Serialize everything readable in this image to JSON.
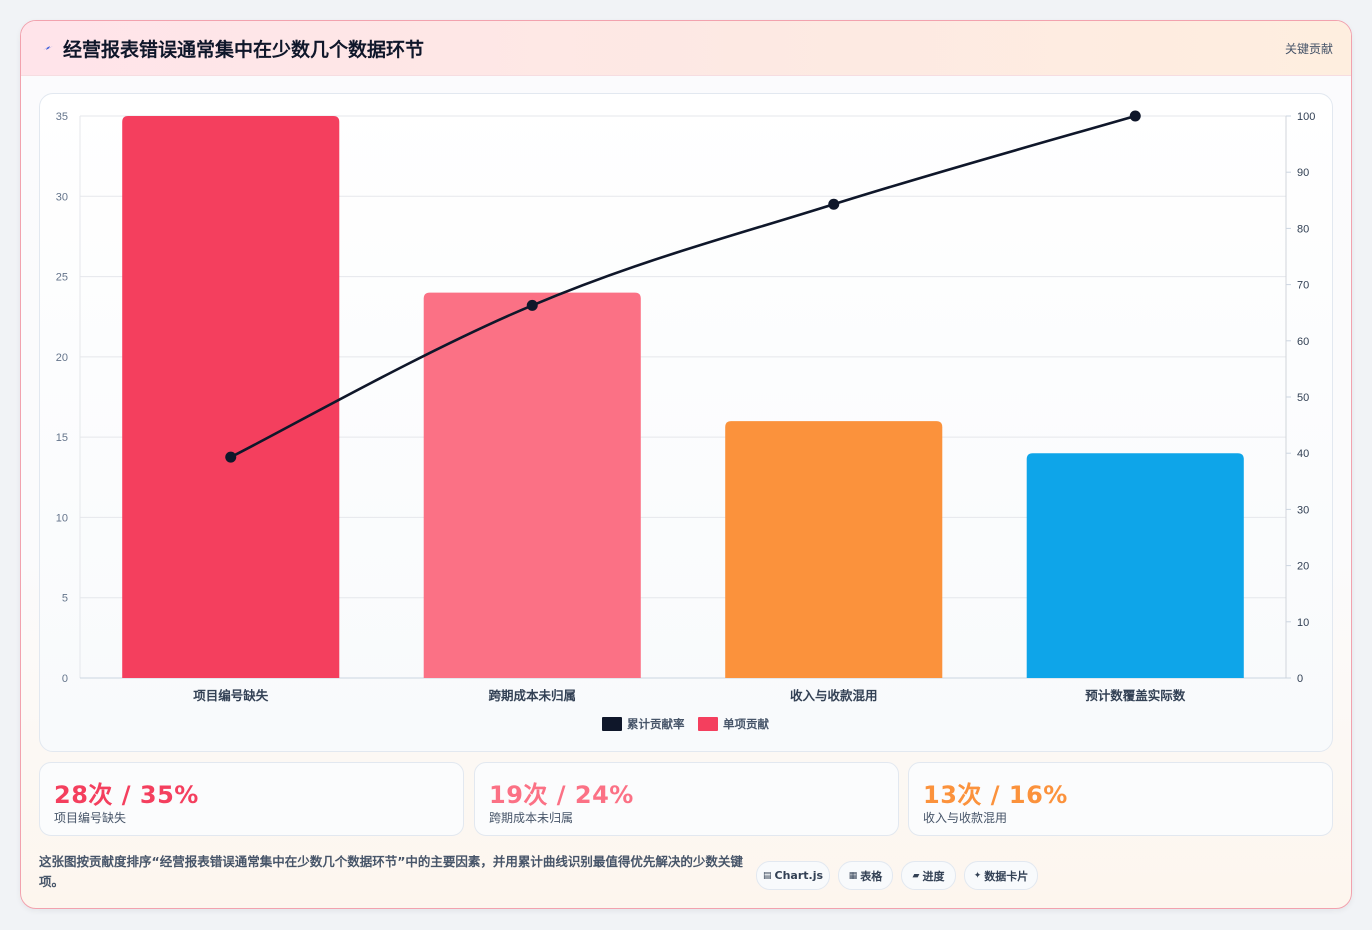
{
  "header": {
    "title": "经营报表错误通常集中在少数几个数据环节",
    "tag": "关键贡献"
  },
  "chart_data": {
    "type": "bar",
    "categories": [
      "项目编号缺失",
      "跨期成本未归属",
      "收入与收款混用",
      "预计数覆盖实际数"
    ],
    "series": [
      {
        "name": "单项贡献",
        "type": "bar",
        "axis": "left",
        "values": [
          35,
          24,
          16,
          14
        ],
        "colors": [
          "#f43f5e",
          "#fb7185",
          "#fb923c",
          "#0ea5e9"
        ]
      },
      {
        "name": "累计贡献率",
        "type": "line",
        "axis": "right",
        "values": [
          39.3,
          66.3,
          84.3,
          100
        ],
        "color": "#0f172a"
      }
    ],
    "ylim": [
      0,
      35
    ],
    "y_ticks": [
      0,
      5,
      10,
      15,
      20,
      25,
      30,
      35
    ],
    "y2lim": [
      0,
      100
    ],
    "y2_ticks": [
      0,
      10,
      20,
      30,
      40,
      50,
      60,
      70,
      80,
      90,
      100
    ],
    "legend": {
      "position": "bottom",
      "entries": [
        {
          "label": "累计贡献率",
          "color": "#0f172a"
        },
        {
          "label": "单项贡献",
          "color": "#f43f5e"
        }
      ]
    },
    "grid": true
  },
  "stats": [
    {
      "value": "28次 / 35%",
      "label": "项目编号缺失",
      "color": "#f43f5e"
    },
    {
      "value": "19次 / 24%",
      "label": "跨期成本未归属",
      "color": "#fb7185"
    },
    {
      "value": "13次 / 16%",
      "label": "收入与收款混用",
      "color": "#fb923c"
    }
  ],
  "footer": {
    "description": "这张图按贡献度排序“经营报表错误通常集中在少数几个数据环节”中的主要因素，并用累计曲线识别最值得优先解决的少数关键项。",
    "chips": [
      {
        "icon": "▤",
        "label": "Chart.js"
      },
      {
        "icon": "▦",
        "label": "表格"
      },
      {
        "icon": "▰",
        "label": "进度"
      },
      {
        "icon": "✦",
        "label": "数据卡片"
      }
    ]
  }
}
